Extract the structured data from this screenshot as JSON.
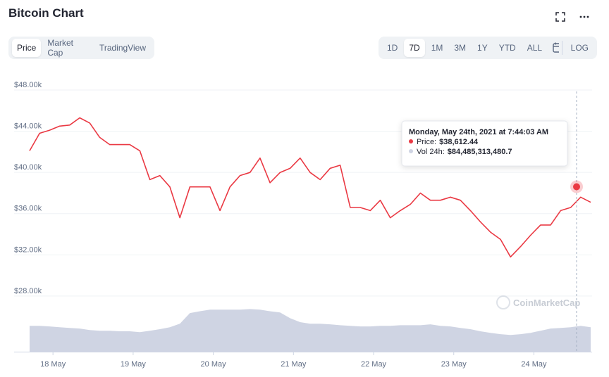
{
  "header": {
    "title": "Bitcoin Chart",
    "tabs": [
      "Price",
      "Market Cap",
      "TradingView"
    ],
    "active_tab": 0,
    "ranges": [
      "1D",
      "7D",
      "1M",
      "3M",
      "1Y",
      "YTD",
      "ALL"
    ],
    "active_range": 1,
    "log": "LOG"
  },
  "watermark": "CoinMarketCap",
  "chart_data": {
    "type": "line",
    "x": [
      "2021-05-17T17:00",
      "2021-05-17T20:00",
      "2021-05-17T23:00",
      "2021-05-18T02:00",
      "2021-05-18T05:00",
      "2021-05-18T08:00",
      "2021-05-18T11:00",
      "2021-05-18T14:00",
      "2021-05-18T17:00",
      "2021-05-18T20:00",
      "2021-05-18T23:00",
      "2021-05-19T02:00",
      "2021-05-19T05:00",
      "2021-05-19T08:00",
      "2021-05-19T11:00",
      "2021-05-19T14:00",
      "2021-05-19T17:00",
      "2021-05-19T20:00",
      "2021-05-19T23:00",
      "2021-05-20T02:00",
      "2021-05-20T05:00",
      "2021-05-20T08:00",
      "2021-05-20T11:00",
      "2021-05-20T14:00",
      "2021-05-20T17:00",
      "2021-05-20T20:00",
      "2021-05-20T23:00",
      "2021-05-21T02:00",
      "2021-05-21T05:00",
      "2021-05-21T08:00",
      "2021-05-21T11:00",
      "2021-05-21T14:00",
      "2021-05-21T17:00",
      "2021-05-21T20:00",
      "2021-05-21T23:00",
      "2021-05-22T02:00",
      "2021-05-22T05:00",
      "2021-05-22T08:00",
      "2021-05-22T11:00",
      "2021-05-22T14:00",
      "2021-05-22T17:00",
      "2021-05-22T20:00",
      "2021-05-22T23:00",
      "2021-05-23T02:00",
      "2021-05-23T05:00",
      "2021-05-23T08:00",
      "2021-05-23T11:00",
      "2021-05-23T14:00",
      "2021-05-23T17:00",
      "2021-05-23T20:00",
      "2021-05-23T23:00",
      "2021-05-24T02:00",
      "2021-05-24T05:00",
      "2021-05-24T08:00",
      "2021-05-24T11:00",
      "2021-05-24T14:00",
      "2021-05-24T17:00"
    ],
    "series": [
      {
        "color": "#ea3943",
        "values": [
          42100,
          43800,
          44100,
          44500,
          44600,
          45300,
          44800,
          43400,
          42700,
          42700,
          42700,
          42100,
          39300,
          39700,
          38600,
          35600,
          38600,
          38600,
          38600,
          36300,
          38600,
          39700,
          40000,
          41400,
          39000,
          40000,
          40400,
          41400,
          40000,
          39300,
          40400,
          40700,
          36600,
          36600,
          36300,
          37300,
          35600,
          36300,
          36900,
          38000,
          37300,
          37300,
          37600,
          37300,
          36300,
          35200,
          34200,
          33500,
          31800,
          32800,
          33900,
          34900,
          34900,
          36300,
          36600,
          37600,
          37100
        ]
      },
      {
        "type": "area",
        "axis": "y2",
        "color": "#cfd4e3",
        "values": [
          85000000000.0,
          85000000000.0,
          83000000000.0,
          80500000000.0,
          78000000000.0,
          76000000000.0,
          71000000000.0,
          69000000000.0,
          69000000000.0,
          67000000000.0,
          67000000000.0,
          64000000000.0,
          69000000000.0,
          74000000000.0,
          80500000000.0,
          92000000000.0,
          127000000000.0,
          133000000000.0,
          138000000000.0,
          138000000000.0,
          138000000000.0,
          138000000000.0,
          140000000000.0,
          138000000000.0,
          133000000000.0,
          129000000000.0,
          110000000000.0,
          97000000000.0,
          92000000000.0,
          92000000000.0,
          90000000000.0,
          87000000000.0,
          85000000000.0,
          83000000000.0,
          83000000000.0,
          85000000000.0,
          85000000000.0,
          87000000000.0,
          87000000000.0,
          87000000000.0,
          90000000000.0,
          85000000000.0,
          83000000000.0,
          78000000000.0,
          74000000000.0,
          67000000000.0,
          62000000000.0,
          57500000000.0,
          55000000000.0,
          57500000000.0,
          62000000000.0,
          69000000000.0,
          76000000000.0,
          78000000000.0,
          80500000000.0,
          85000000000.0,
          80500000000.0
        ]
      }
    ],
    "xlim": [
      "2021-05-17T17:00",
      "2021-05-24T17:00"
    ],
    "xticks": [
      {
        "value": "2021-05-18T00:00",
        "label": "18 May"
      },
      {
        "value": "2021-05-19T00:00",
        "label": "19 May"
      },
      {
        "value": "2021-05-20T00:00",
        "label": "20 May"
      },
      {
        "value": "2021-05-21T00:00",
        "label": "21 May"
      },
      {
        "value": "2021-05-22T00:00",
        "label": "22 May"
      },
      {
        "value": "2021-05-23T00:00",
        "label": "23 May"
      },
      {
        "value": "2021-05-24T00:00",
        "label": "24 May"
      }
    ],
    "ylim": [
      22600,
      48000
    ],
    "yticks": [
      {
        "value": 28000,
        "label": "$28.00k"
      },
      {
        "value": 32000,
        "label": "$32.00k"
      },
      {
        "value": 36000,
        "label": "$36.00k"
      },
      {
        "value": 40000,
        "label": "$40.00k"
      },
      {
        "value": 44000,
        "label": "$44.00k"
      },
      {
        "value": 48000,
        "label": "$48.00k"
      }
    ],
    "y2lim": [
      0,
      860000000000.0
    ],
    "grid": true,
    "tooltip": {
      "title": "Monday, May 24th, 2021 at 7:44:03 AM",
      "items": [
        {
          "label": "Price:",
          "value": 38612.44,
          "value_label": "$38,612.44",
          "color": "#ea3943"
        },
        {
          "label": "Vol 24h:",
          "value": 84485313480.7,
          "value_label": "$84,485,313,480.7",
          "color": "#cfd4e3"
        }
      ]
    }
  }
}
